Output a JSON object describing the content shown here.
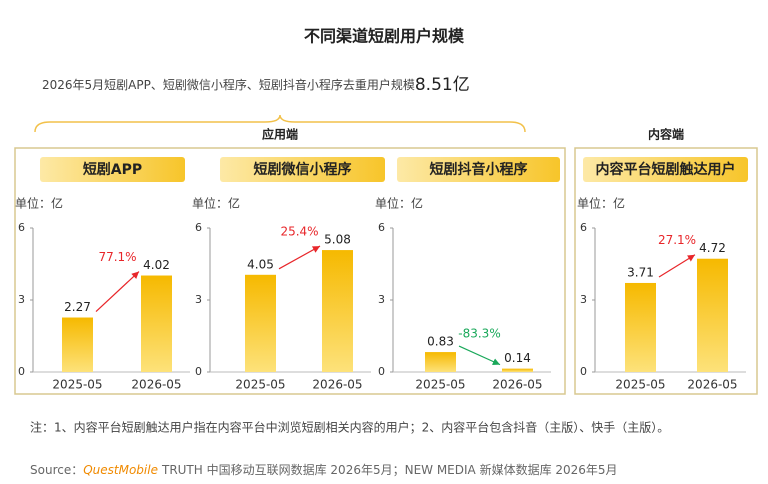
{
  "title": "不同渠道短剧用户规模",
  "subtitle": "2026年5月短剧APP、短剧微信小程序、短剧抖音小程序去重用户规模",
  "subtitle_total": "8.51亿",
  "group_labels": [
    "应用端",
    "内容端"
  ],
  "note": "注：1、内容平台短剧触达用户指在内容平台中浏览短剧相关内容的用户；2、内容平台包含抖音（主版）、快手（主版）。",
  "source_label": "Source：",
  "source_brand": "QuestMobile",
  "source_text": "TRUTH 中国移动互联网数据库 2026年5月；NEW MEDIA 新媒体数据库 2026年5月",
  "chart_data": [
    {
      "type": "bar",
      "title": "短剧APP",
      "unit_label": "单位：亿",
      "categories": [
        "2025-05",
        "2026-05"
      ],
      "values": [
        2.27,
        4.02
      ],
      "ylim": [
        0,
        6
      ],
      "yticks": [
        0,
        3,
        6
      ],
      "annotation": "77.1%",
      "annotation_color": "#e8262a",
      "color": "#f6b900"
    },
    {
      "type": "bar",
      "title": "短剧微信小程序",
      "unit_label": "单位：亿",
      "categories": [
        "2025-05",
        "2026-05"
      ],
      "values": [
        4.05,
        5.08
      ],
      "ylim": [
        0,
        6
      ],
      "yticks": [
        0,
        3,
        6
      ],
      "annotation": "25.4%",
      "annotation_color": "#e8262a",
      "color": "#f6b900"
    },
    {
      "type": "bar",
      "title": "短剧抖音小程序",
      "unit_label": "单位：亿",
      "categories": [
        "2025-05",
        "2026-05"
      ],
      "values": [
        0.83,
        0.14
      ],
      "ylim": [
        0,
        6
      ],
      "yticks": [
        0,
        3,
        6
      ],
      "annotation": "-83.3%",
      "annotation_color": "#1aa85a",
      "color": "#f6b900"
    },
    {
      "type": "bar",
      "title": "内容平台短剧触达用户",
      "unit_label": "单位：亿",
      "categories": [
        "2025-05",
        "2026-05"
      ],
      "values": [
        3.71,
        4.72
      ],
      "ylim": [
        0,
        6
      ],
      "yticks": [
        0,
        3,
        6
      ],
      "annotation": "27.1%",
      "annotation_color": "#e8262a",
      "color": "#f6b900"
    }
  ]
}
